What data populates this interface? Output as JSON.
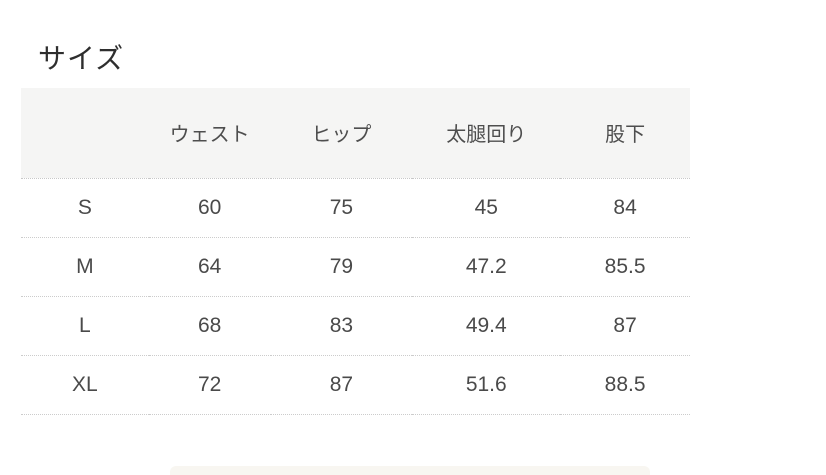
{
  "page": {
    "title": "サイズ"
  },
  "colors": {
    "background": "#ffffff",
    "header_row_bg": "#f5f5f4",
    "text_primary": "#2e2e2e",
    "text_table": "#4a4a4a",
    "row_divider_dotted": "#cccccc"
  },
  "size_table": {
    "columns": {
      "size": "",
      "waist": "ウェスト",
      "hip": "ヒップ",
      "thigh": "太腿回り",
      "inseam": "股下"
    },
    "rows": [
      {
        "size": "S",
        "waist": "60",
        "hip": "75",
        "thigh": "45",
        "inseam": "84"
      },
      {
        "size": "M",
        "waist": "64",
        "hip": "79",
        "thigh": "47.2",
        "inseam": "85.5"
      },
      {
        "size": "L",
        "waist": "68",
        "hip": "83",
        "thigh": "49.4",
        "inseam": "87"
      },
      {
        "size": "XL",
        "waist": "72",
        "hip": "87",
        "thigh": "51.6",
        "inseam": "88.5"
      }
    ]
  },
  "chart_data": {
    "type": "table",
    "title": "サイズ",
    "columns": [
      "",
      "ウェスト",
      "ヒップ",
      "太腿回り",
      "股下"
    ],
    "rows": [
      [
        "S",
        60,
        75,
        45,
        84
      ],
      [
        "M",
        64,
        79,
        47.2,
        85.5
      ],
      [
        "L",
        68,
        83,
        49.4,
        87
      ],
      [
        "XL",
        72,
        87,
        51.6,
        88.5
      ]
    ],
    "layout": {
      "header_background": "#f5f5f4",
      "row_separators": "dotted",
      "units_implied": "cm"
    }
  }
}
